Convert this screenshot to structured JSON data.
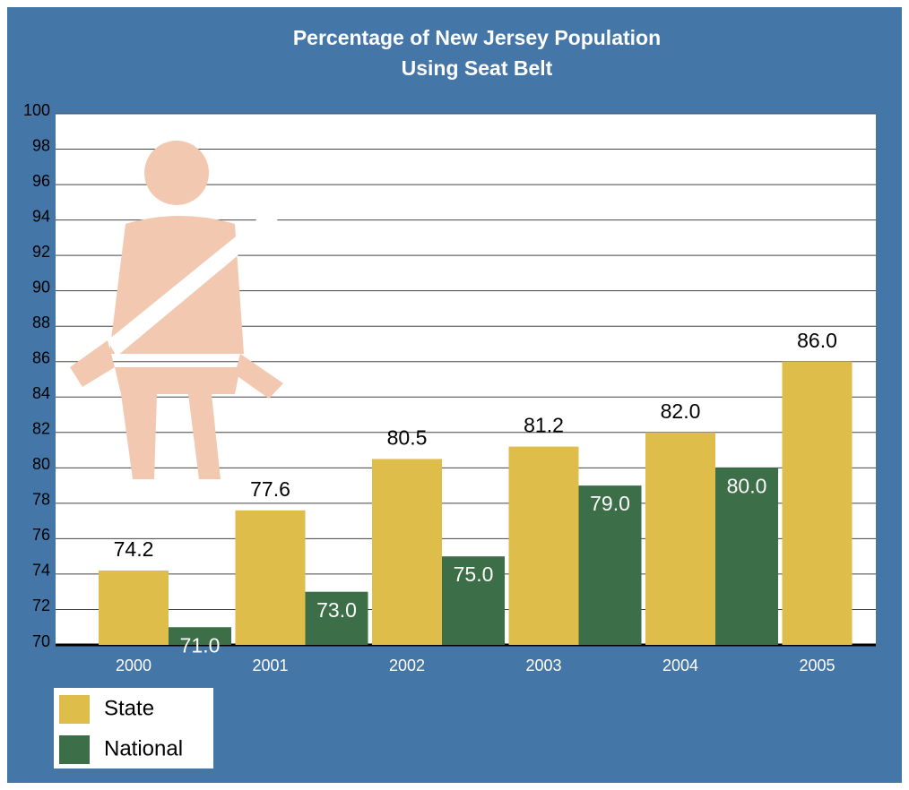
{
  "chart_data": {
    "type": "bar",
    "title": [
      "Percentage of New Jersey Population",
      "Using Seat Belt"
    ],
    "categories": [
      "2000",
      "2001",
      "2002",
      "2003",
      "2004",
      "2005"
    ],
    "series": [
      {
        "name": "State",
        "color": "#dfbd4a",
        "values": [
          74.2,
          77.6,
          80.5,
          81.2,
          82.0,
          86.0
        ],
        "value_labels": [
          "74.2",
          "77.6",
          "80.5",
          "81.2",
          "82.0",
          "86.0"
        ]
      },
      {
        "name": "National",
        "color": "#3c6f47",
        "values": [
          71.0,
          73.0,
          75.0,
          79.0,
          80.0,
          null
        ],
        "value_labels": [
          "71.0",
          "73.0",
          "75.0",
          "79.0",
          "80.0",
          null
        ]
      }
    ],
    "ylim": [
      70,
      100
    ],
    "yticks": [
      70,
      72,
      74,
      76,
      78,
      80,
      82,
      84,
      86,
      88,
      90,
      92,
      94,
      96,
      98,
      100
    ],
    "grid": true
  }
}
